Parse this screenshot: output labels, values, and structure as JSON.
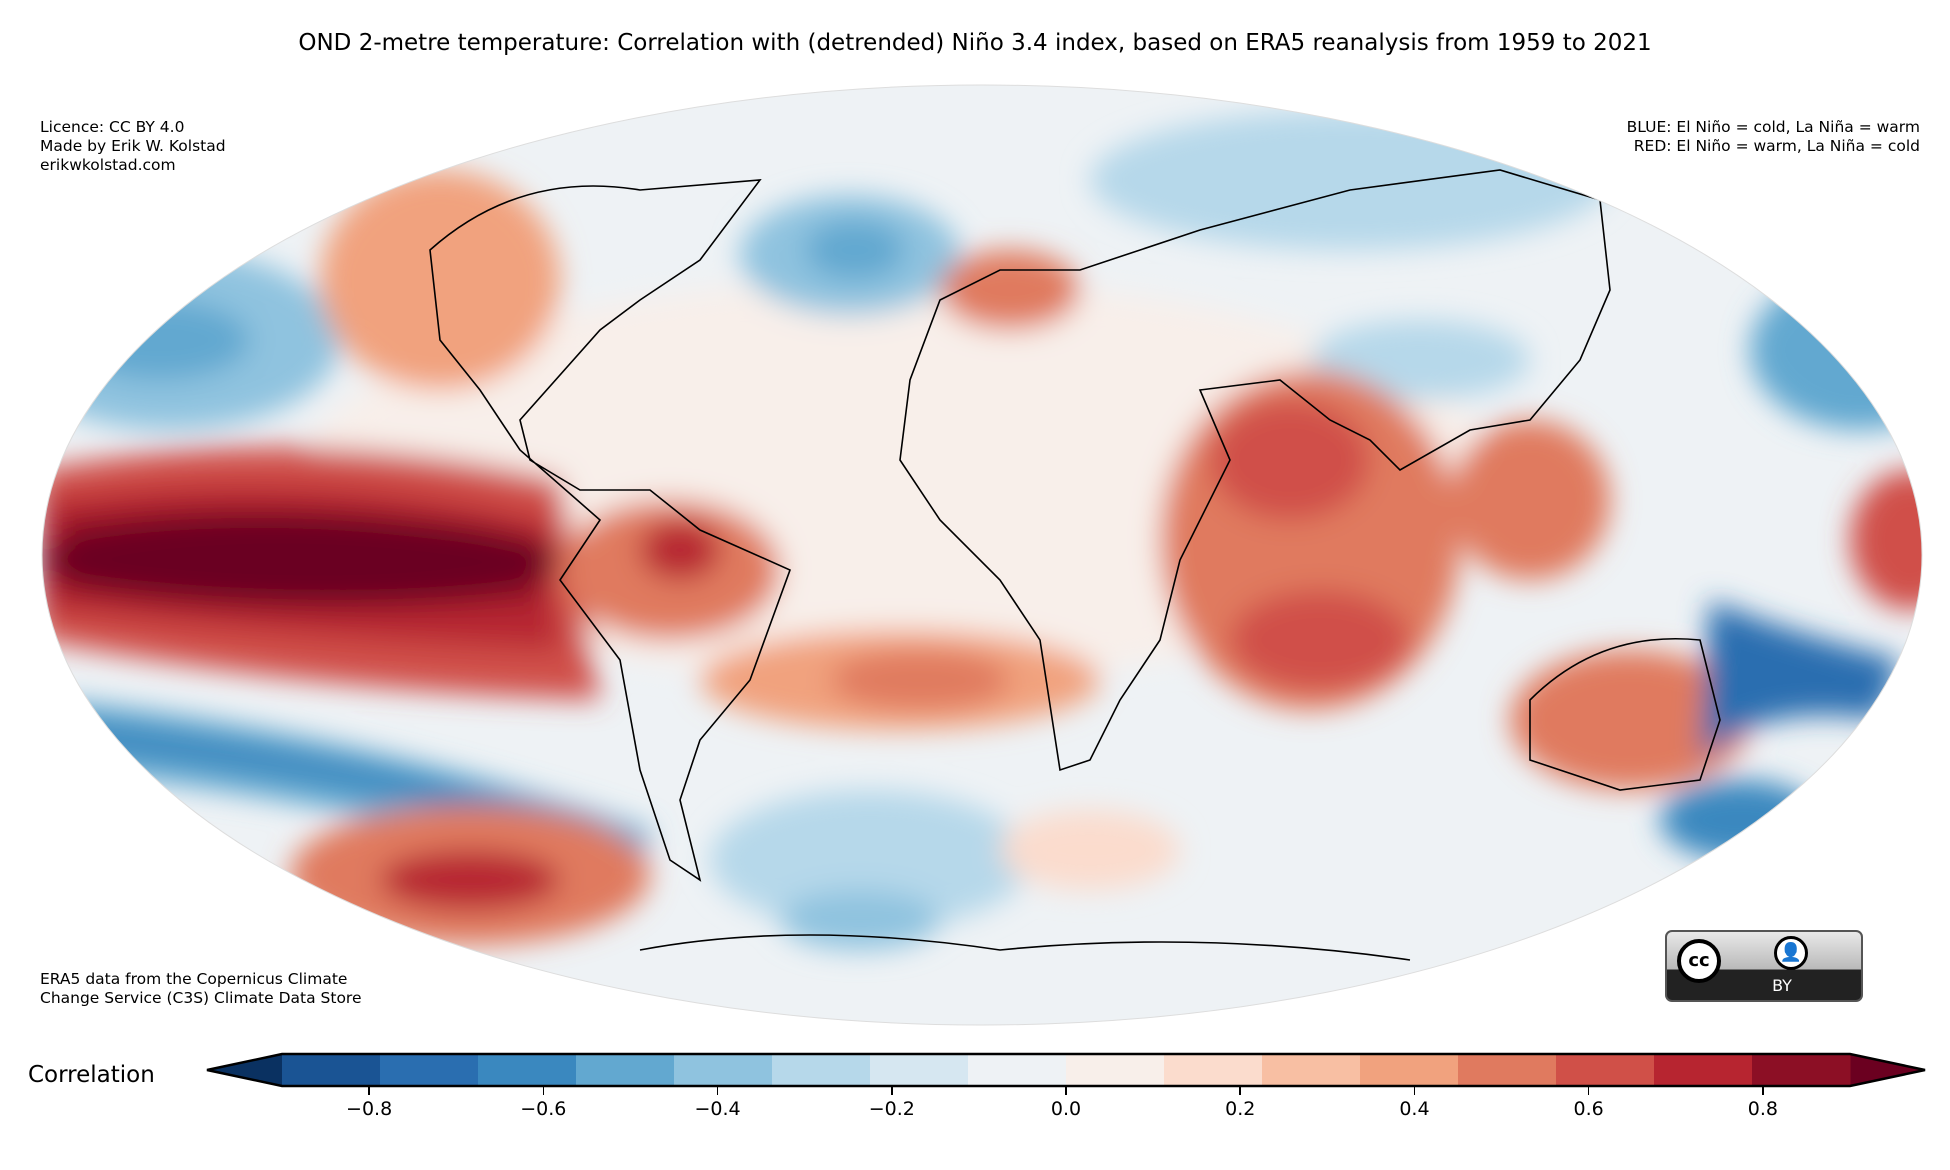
{
  "title": "OND 2-metre temperature: Correlation with (detrended) Niño 3.4 index, based on ERA5 reanalysis from 1959 to 2021",
  "top_left_notes": [
    "Licence: CC BY 4.0",
    "Made by Erik W. Kolstad",
    "erikwkolstad.com"
  ],
  "top_right_notes": [
    "BLUE: El Niño = cold, La Niña = warm",
    "RED: El Niño = warm, La Niña = cold"
  ],
  "bottom_left_notes": [
    "ERA5 data from the Copernicus Climate",
    "Change Service (C3S) Climate Data Store"
  ],
  "license_badge": {
    "cc": "cc",
    "by": "BY"
  },
  "colorbar": {
    "label": "Correlation",
    "range": [
      -0.9,
      0.9
    ],
    "step": 0.1,
    "extend": "both",
    "colors": [
      "#0a3161",
      "#1a5494",
      "#2a6eb0",
      "#3a88bf",
      "#62a8d0",
      "#8fc3df",
      "#b6d8ea",
      "#d6e7f1",
      "#eef2f5",
      "#f8efea",
      "#fbdccd",
      "#f8bfa3",
      "#f1a27e",
      "#e07a5f",
      "#d05048",
      "#b72530",
      "#8c0f25",
      "#6b0020"
    ],
    "ticks": [
      "−0.8",
      "−0.6",
      "−0.4",
      "−0.2",
      "0.0",
      "0.2",
      "0.4",
      "0.6",
      "0.8"
    ],
    "tick_values": [
      -0.8,
      -0.6,
      -0.4,
      -0.2,
      0.0,
      0.2,
      0.4,
      0.6,
      0.8
    ]
  }
}
